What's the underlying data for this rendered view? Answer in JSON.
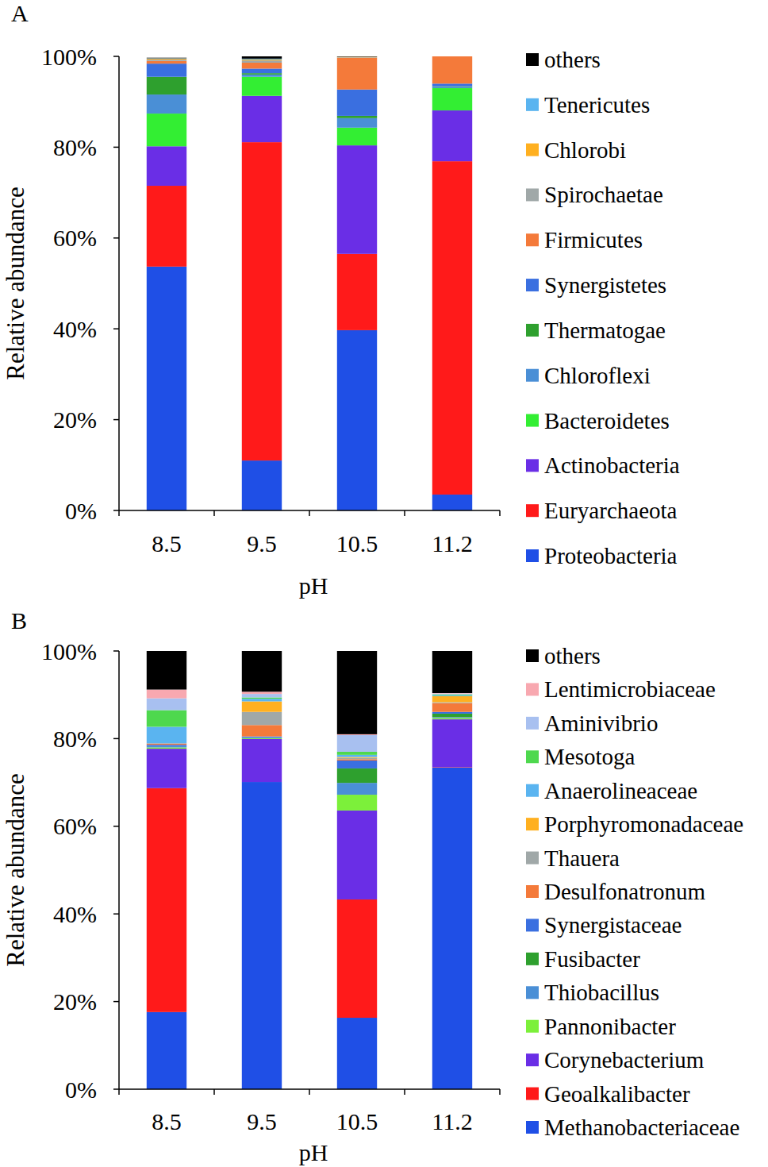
{
  "chart_data": [
    {
      "type": "bar",
      "title": "A",
      "stacked": true,
      "legend": "right",
      "xlabel": "pH",
      "ylabel": "Relative abundance",
      "categories": [
        "8.5",
        "9.5",
        "10.5",
        "11.2"
      ],
      "ylim": [
        0,
        100
      ],
      "yticks": [
        {
          "value": 0,
          "label": "0%"
        },
        {
          "value": 20,
          "label": "20%"
        },
        {
          "value": 40,
          "label": "40%"
        },
        {
          "value": 60,
          "label": "60%"
        },
        {
          "value": 80,
          "label": "80%"
        },
        {
          "value": 100,
          "label": "100%"
        }
      ],
      "series": [
        {
          "name": "Proteobacteria",
          "color": "#1f4fe6",
          "values": [
            53.7,
            11.0,
            39.7,
            3.5
          ]
        },
        {
          "name": "Euryarchaeota",
          "color": "#ff1a1a",
          "values": [
            17.8,
            70.1,
            16.8,
            73.4
          ]
        },
        {
          "name": "Actinobacteria",
          "color": "#6a2ee6",
          "values": [
            8.7,
            10.2,
            23.9,
            11.2
          ]
        },
        {
          "name": "Bacteroidetes",
          "color": "#33ee33",
          "values": [
            7.2,
            4.2,
            3.9,
            4.9
          ]
        },
        {
          "name": "Chloroflexi",
          "color": "#4a8fd6",
          "values": [
            4.2,
            0.5,
            2.1,
            0.3
          ]
        },
        {
          "name": "Thermatogae",
          "color": "#2ea02e",
          "values": [
            3.9,
            0.3,
            0.5,
            0.1
          ]
        },
        {
          "name": "Synergistetes",
          "color": "#3a6fe0",
          "values": [
            2.9,
            1.0,
            5.8,
            0.6
          ]
        },
        {
          "name": "Firmicutes",
          "color": "#f47a3a",
          "values": [
            0.6,
            1.3,
            7.0,
            6.0
          ]
        },
        {
          "name": "Spirochaetae",
          "color": "#a0a8a8",
          "values": [
            0.3,
            0.5,
            0.1,
            0.0
          ]
        },
        {
          "name": "Chlorobi",
          "color": "#ffb020",
          "values": [
            0.2,
            0.2,
            0.1,
            0.0
          ]
        },
        {
          "name": "Tenericutes",
          "color": "#5ab4f0",
          "values": [
            0.1,
            0.2,
            0.0,
            0.0
          ]
        },
        {
          "name": "others",
          "color": "#000000",
          "values": [
            0.1,
            0.5,
            0.1,
            0.0
          ]
        }
      ]
    },
    {
      "type": "bar",
      "title": "B",
      "stacked": true,
      "legend": "right",
      "xlabel": "pH",
      "ylabel": "Relative abundance",
      "categories": [
        "8.5",
        "9.5",
        "10.5",
        "11.2"
      ],
      "ylim": [
        0,
        100
      ],
      "yticks": [
        {
          "value": 0,
          "label": "0%"
        },
        {
          "value": 20,
          "label": "20%"
        },
        {
          "value": 40,
          "label": "40%"
        },
        {
          "value": 60,
          "label": "60%"
        },
        {
          "value": 80,
          "label": "80%"
        },
        {
          "value": 100,
          "label": "100%"
        }
      ],
      "series": [
        {
          "name": "Methanobacteriaceae",
          "color": "#1f4fe6",
          "values": [
            17.6,
            70.1,
            16.3,
            73.4
          ]
        },
        {
          "name": "Geoalkalibacter",
          "color": "#ff1a1a",
          "values": [
            51.1,
            0.0,
            27.0,
            0.1
          ]
        },
        {
          "name": "Corynebacterium",
          "color": "#6a2ee6",
          "values": [
            9.0,
            9.8,
            20.3,
            10.9
          ]
        },
        {
          "name": "Pannonibacter",
          "color": "#7cf03a",
          "values": [
            0.3,
            0.2,
            3.6,
            0.3
          ]
        },
        {
          "name": "Thiobacillus",
          "color": "#4a8fd6",
          "values": [
            0.3,
            0.2,
            2.7,
            0.2
          ]
        },
        {
          "name": "Fusibacter",
          "color": "#2ea02e",
          "values": [
            0.0,
            0.0,
            3.3,
            0.8
          ]
        },
        {
          "name": "Synergistaceae",
          "color": "#3a6fe0",
          "values": [
            0.3,
            0.2,
            1.8,
            0.4
          ]
        },
        {
          "name": "Desulfonatronum",
          "color": "#f47a3a",
          "values": [
            0.3,
            2.6,
            0.3,
            2.0
          ]
        },
        {
          "name": "Thauera",
          "color": "#a0a8a8",
          "values": [
            0.0,
            3.0,
            0.3,
            0.2
          ]
        },
        {
          "name": "Porphyromonadaceae",
          "color": "#ffb020",
          "values": [
            0.0,
            2.4,
            0.2,
            1.4
          ]
        },
        {
          "name": "Anaerolineaceae",
          "color": "#5ab4f0",
          "values": [
            3.8,
            0.6,
            0.5,
            0.2
          ]
        },
        {
          "name": "Mesotoga",
          "color": "#4ed84e",
          "values": [
            3.8,
            0.3,
            0.7,
            0.2
          ]
        },
        {
          "name": "Aminivibrio",
          "color": "#a8c0f0",
          "values": [
            2.7,
            0.8,
            3.8,
            0.2
          ]
        },
        {
          "name": "Lentimicrobiaceae",
          "color": "#f8a8b0",
          "values": [
            2.0,
            0.5,
            0.2,
            0.1
          ]
        },
        {
          "name": "others",
          "color": "#000000",
          "values": [
            8.8,
            9.3,
            19.0,
            9.6
          ]
        }
      ]
    }
  ]
}
